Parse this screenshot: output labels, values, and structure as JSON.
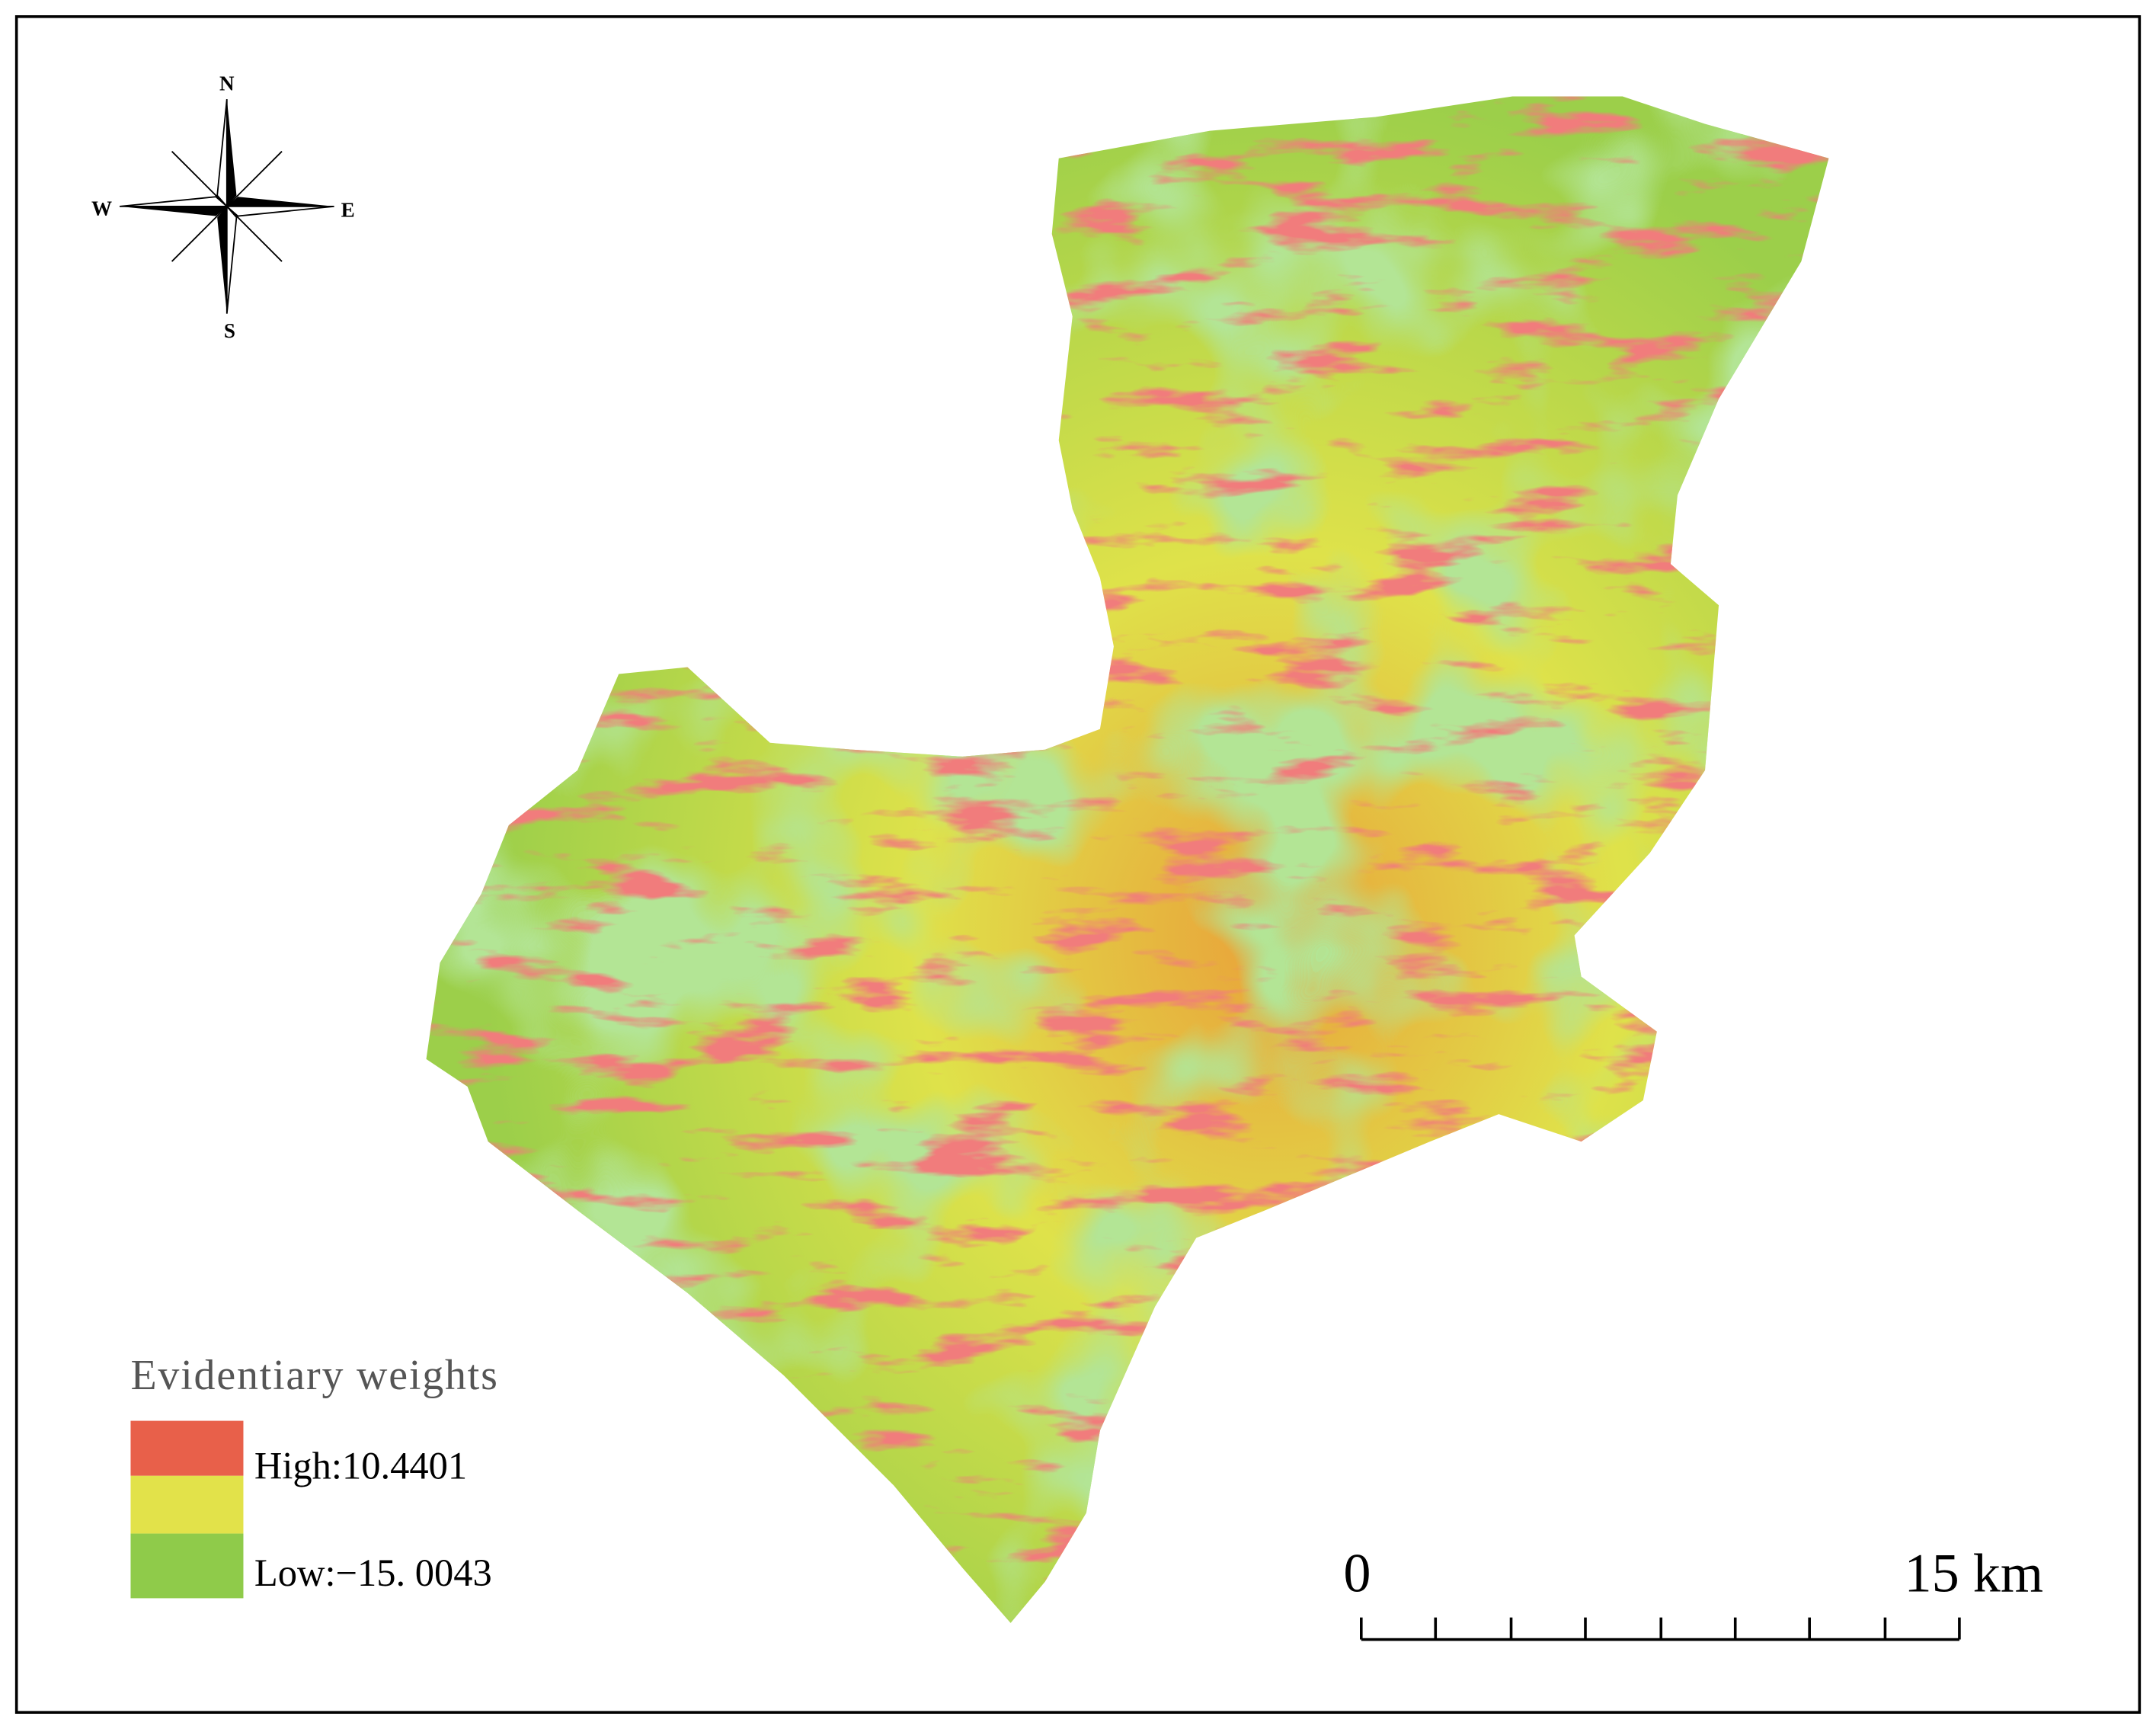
{
  "compass": {
    "north": "N",
    "south": "S",
    "east": "E",
    "west": "W"
  },
  "legend": {
    "title": "Evidentiary weights",
    "high": "High:10.4401",
    "low": "Low:−15. 0043"
  },
  "scale_bar": {
    "start": "0",
    "end": "15 km"
  }
}
